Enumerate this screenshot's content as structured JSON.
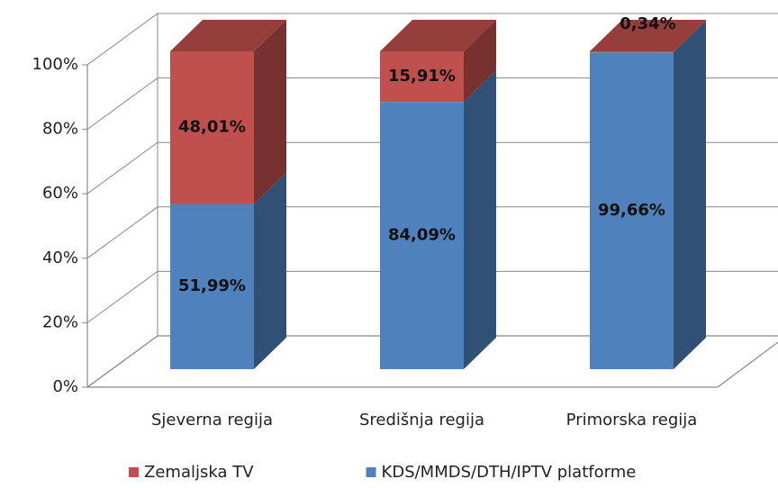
{
  "chart_data": {
    "type": "bar3d_stacked",
    "categories": [
      "Sjeverna regija",
      "Središnja regija",
      "Primorska regija"
    ],
    "series": [
      {
        "name": "KDS/MMDS/DTH/IPTV platforme",
        "color": "#4f81bd",
        "values": [
          51.99,
          84.09,
          99.66
        ],
        "value_labels": [
          "51,99%",
          "84,09%",
          "99,66%"
        ]
      },
      {
        "name": "Zemaljska TV",
        "color": "#c0504d",
        "values": [
          48.01,
          15.91,
          0.34
        ],
        "value_labels": [
          "48,01%",
          "15,91%",
          "0,34%"
        ]
      }
    ],
    "ylim": [
      0,
      100
    ],
    "yticks": [
      {
        "value": 0,
        "label": "0%"
      },
      {
        "value": 20,
        "label": "20%"
      },
      {
        "value": 40,
        "label": "40%"
      },
      {
        "value": 60,
        "label": "60%"
      },
      {
        "value": 80,
        "label": "80%"
      },
      {
        "value": 100,
        "label": "100%"
      }
    ],
    "grid": true,
    "legend": "bottom"
  }
}
